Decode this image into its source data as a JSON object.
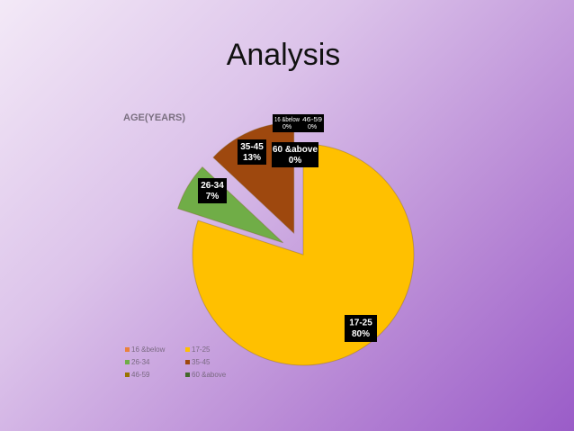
{
  "title": "Analysis",
  "chart_data": {
    "type": "pie",
    "title": "AGE(YEARS)",
    "categories": [
      "16 &below",
      "17-25",
      "26-34",
      "35-45",
      "46-59",
      "60 &above"
    ],
    "values": [
      0,
      80,
      7,
      13,
      0,
      0
    ],
    "value_labels": [
      "0%",
      "80%",
      "7%",
      "13%",
      "0%",
      "0%"
    ],
    "colors": [
      "#e8823c",
      "#ffc000",
      "#70ad47",
      "#9e480e",
      "#997300",
      "#43682b"
    ],
    "legend": "bottom-left"
  }
}
